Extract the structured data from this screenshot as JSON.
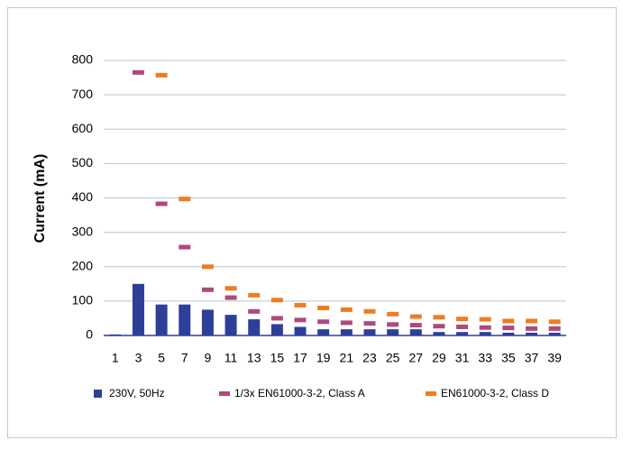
{
  "chart_data": {
    "type": "bar",
    "y_label": "Current (mA)",
    "categories": [
      "1",
      "3",
      "5",
      "7",
      "9",
      "11",
      "13",
      "15",
      "17",
      "19",
      "21",
      "23",
      "25",
      "27",
      "29",
      "31",
      "33",
      "35",
      "37",
      "39"
    ],
    "series": [
      {
        "name": "230V, 50Hz",
        "color": "#2e3f98",
        "mark": "bar",
        "values": [
          3,
          150,
          90,
          90,
          75,
          60,
          47,
          33,
          25,
          18,
          18,
          18,
          18,
          18,
          10,
          10,
          10,
          8,
          8,
          8
        ]
      },
      {
        "name": "1/3x EN61000-3-2, Class A",
        "color": "#b0487e",
        "mark": "dash",
        "values": [
          null,
          765,
          383,
          257,
          133,
          110,
          70,
          50,
          45,
          40,
          37,
          35,
          32,
          30,
          27,
          25,
          23,
          22,
          20,
          20
        ]
      },
      {
        "name": "EN61000-3-2, Class D",
        "color": "#f07c22",
        "mark": "dash",
        "values": [
          null,
          null,
          757,
          397,
          200,
          137,
          117,
          103,
          88,
          80,
          75,
          70,
          62,
          55,
          53,
          48,
          47,
          42,
          42,
          40
        ]
      }
    ],
    "ylim": [
      0,
      800
    ],
    "yticks": [
      0,
      100,
      200,
      300,
      400,
      500,
      600,
      700,
      800
    ],
    "grid": true
  }
}
